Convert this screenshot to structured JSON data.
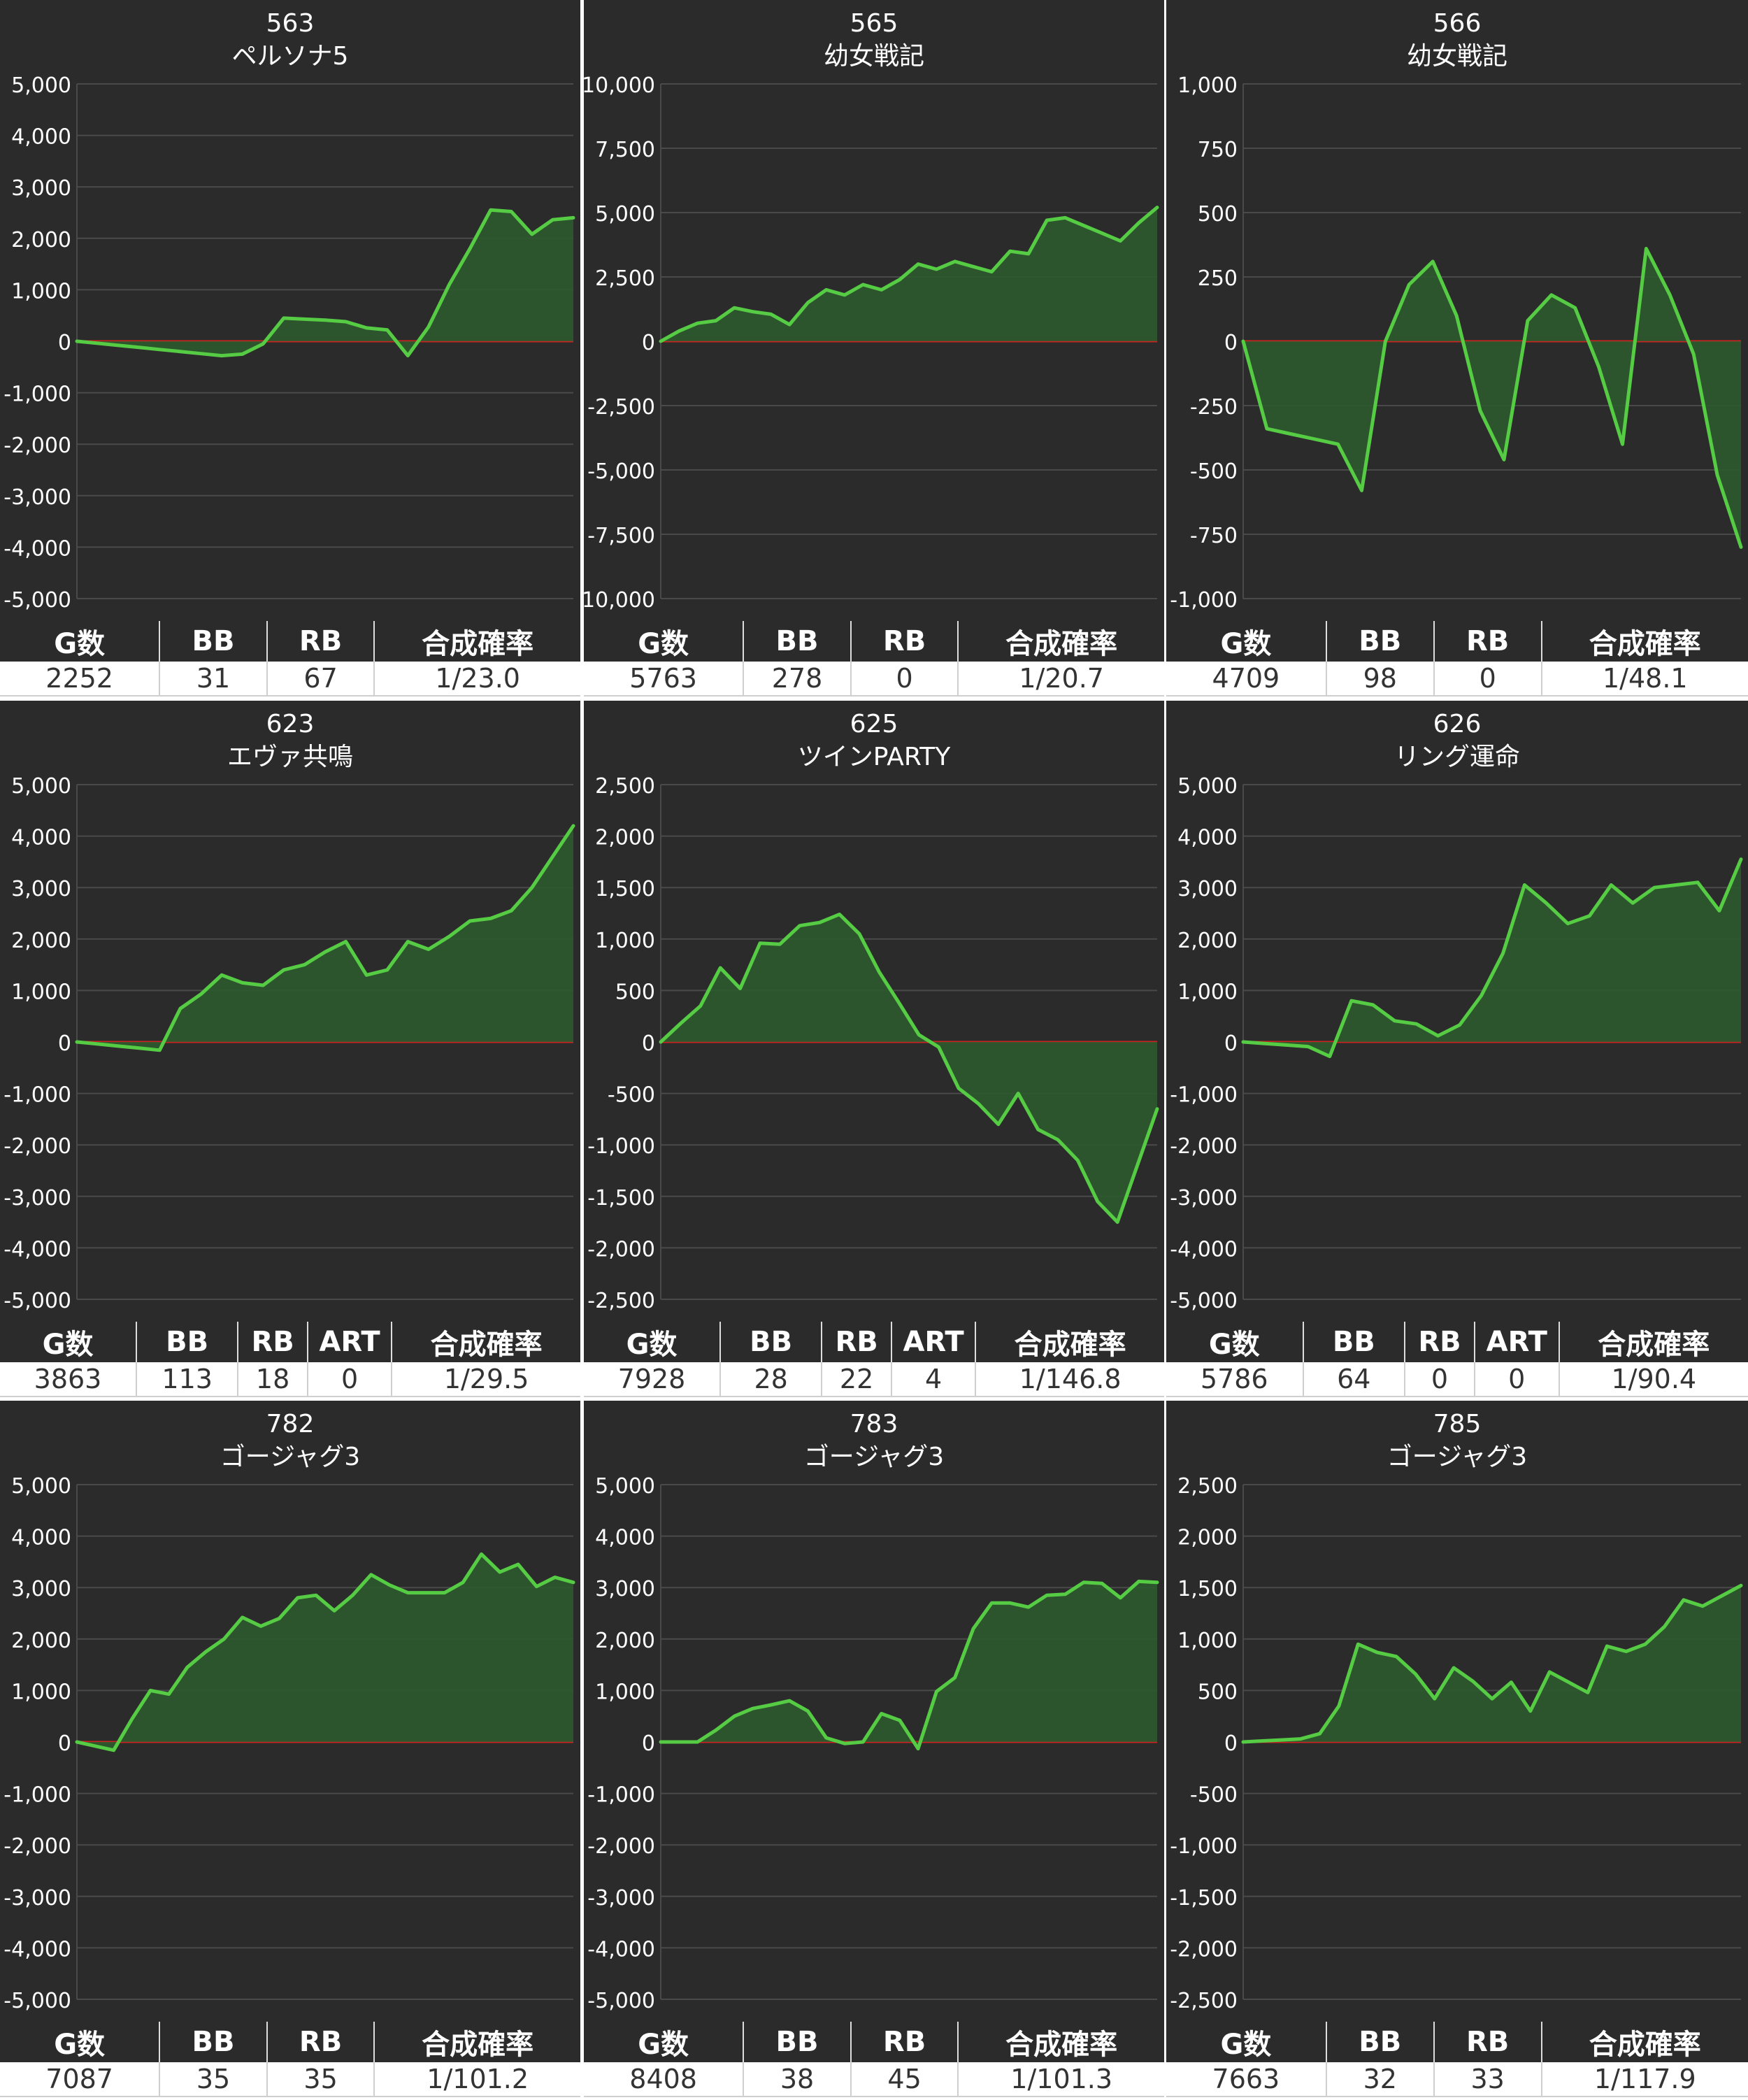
{
  "colors": {
    "background": "#2b2b2b",
    "grid": "#4a4a4a",
    "zero_line": "#cc2222",
    "line": "#55cc44",
    "fill": "#2e5a2e",
    "text": "#ffffff"
  },
  "chart_data": [
    {
      "type": "area",
      "number": "563",
      "name": "ペルソナ5",
      "ylim": [
        -5000,
        5000
      ],
      "yticks": [
        "5,000",
        "4,000",
        "3,000",
        "2,000",
        "1,000",
        "0",
        "-1,000",
        "-2,000",
        "-3,000",
        "-4,000",
        "-5,000"
      ],
      "values": [
        0,
        -40,
        -80,
        -120,
        -160,
        -200,
        -240,
        -280,
        -250,
        -50,
        450,
        430,
        410,
        380,
        260,
        220,
        -280,
        280,
        1100,
        1800,
        2550,
        2520,
        2080,
        2360,
        2400
      ],
      "stats_headers": [
        "G数",
        "BB",
        "RB",
        "合成確率"
      ],
      "stats_values": [
        "2252",
        "31",
        "67",
        "1/23.0"
      ]
    },
    {
      "type": "area",
      "number": "565",
      "name": "幼女戦記",
      "ylim": [
        -10000,
        10000
      ],
      "yticks": [
        "10,000",
        "7,500",
        "5,000",
        "2,500",
        "0",
        "-2,500",
        "-5,000",
        "-7,500",
        "-10,000"
      ],
      "values": [
        0,
        400,
        700,
        800,
        1300,
        1150,
        1050,
        650,
        1500,
        2000,
        1800,
        2200,
        2000,
        2400,
        3000,
        2800,
        3100,
        2900,
        2700,
        3500,
        3400,
        4700,
        4800,
        4500,
        4200,
        3900,
        4600,
        5200
      ],
      "stats_headers": [
        "G数",
        "BB",
        "RB",
        "合成確率"
      ],
      "stats_values": [
        "5763",
        "278",
        "0",
        "1/20.7"
      ]
    },
    {
      "type": "area",
      "number": "566",
      "name": "幼女戦記",
      "ylim": [
        -1000,
        1000
      ],
      "yticks": [
        "1,000",
        "750",
        "500",
        "250",
        "0",
        "-250",
        "-500",
        "-750",
        "-1,000"
      ],
      "values": [
        0,
        -340,
        -360,
        -380,
        -400,
        -580,
        0,
        220,
        310,
        100,
        -270,
        -460,
        80,
        180,
        130,
        -100,
        -400,
        360,
        180,
        -50,
        -520,
        -800
      ],
      "stats_headers": [
        "G数",
        "BB",
        "RB",
        "合成確率"
      ],
      "stats_values": [
        "4709",
        "98",
        "0",
        "1/48.1"
      ]
    },
    {
      "type": "area",
      "number": "623",
      "name": "エヴァ共鳴",
      "ylim": [
        -5000,
        5000
      ],
      "yticks": [
        "5,000",
        "4,000",
        "3,000",
        "2,000",
        "1,000",
        "0",
        "-1,000",
        "-2,000",
        "-3,000",
        "-4,000",
        "-5,000"
      ],
      "values": [
        0,
        -40,
        -80,
        -120,
        -160,
        650,
        930,
        1300,
        1150,
        1100,
        1400,
        1500,
        1750,
        1950,
        1300,
        1400,
        1950,
        1800,
        2050,
        2350,
        2400,
        2550,
        3000,
        3600,
        4200
      ],
      "stats_headers": [
        "G数",
        "BB",
        "RB",
        "ART",
        "合成確率"
      ],
      "stats_values": [
        "3863",
        "113",
        "18",
        "0",
        "1/29.5"
      ]
    },
    {
      "type": "area",
      "number": "625",
      "name": "ツインPARTY",
      "ylim": [
        -2500,
        2500
      ],
      "yticks": [
        "2,500",
        "2,000",
        "1,500",
        "1,000",
        "500",
        "0",
        "-500",
        "-1,000",
        "-1,500",
        "-2,000",
        "-2,500"
      ],
      "values": [
        0,
        180,
        350,
        720,
        520,
        960,
        950,
        1130,
        1160,
        1240,
        1050,
        680,
        380,
        70,
        -50,
        -450,
        -600,
        -800,
        -500,
        -850,
        -950,
        -1150,
        -1550,
        -1750,
        -1200,
        -650
      ],
      "stats_headers": [
        "G数",
        "BB",
        "RB",
        "ART",
        "合成確率"
      ],
      "stats_values": [
        "7928",
        "28",
        "22",
        "4",
        "1/146.8"
      ]
    },
    {
      "type": "area",
      "number": "626",
      "name": "リング運命",
      "ylim": [
        -5000,
        5000
      ],
      "yticks": [
        "5,000",
        "4,000",
        "3,000",
        "2,000",
        "1,000",
        "0",
        "-1,000",
        "-2,000",
        "-3,000",
        "-4,000",
        "-5,000"
      ],
      "values": [
        0,
        -30,
        -60,
        -90,
        -280,
        800,
        720,
        410,
        350,
        120,
        330,
        900,
        1720,
        3050,
        2700,
        2300,
        2450,
        3050,
        2700,
        3000,
        3050,
        3100,
        2550,
        3550
      ],
      "stats_headers": [
        "G数",
        "BB",
        "RB",
        "ART",
        "合成確率"
      ],
      "stats_values": [
        "5786",
        "64",
        "0",
        "0",
        "1/90.4"
      ]
    },
    {
      "type": "area",
      "number": "782",
      "name": "ゴージャグ3",
      "ylim": [
        -5000,
        5000
      ],
      "yticks": [
        "5,000",
        "4,000",
        "3,000",
        "2,000",
        "1,000",
        "0",
        "-1,000",
        "-2,000",
        "-3,000",
        "-4,000",
        "-5,000"
      ],
      "values": [
        0,
        -80,
        -160,
        450,
        1000,
        930,
        1450,
        1750,
        2000,
        2420,
        2250,
        2400,
        2800,
        2850,
        2550,
        2850,
        3250,
        3050,
        2900,
        2900,
        2900,
        3100,
        3650,
        3300,
        3450,
        3020,
        3200,
        3100
      ],
      "stats_headers": [
        "G数",
        "BB",
        "RB",
        "合成確率"
      ],
      "stats_values": [
        "7087",
        "35",
        "35",
        "1/101.2"
      ]
    },
    {
      "type": "area",
      "number": "783",
      "name": "ゴージャグ3",
      "ylim": [
        -5000,
        5000
      ],
      "yticks": [
        "5,000",
        "4,000",
        "3,000",
        "2,000",
        "1,000",
        "0",
        "-1,000",
        "-2,000",
        "-3,000",
        "-4,000",
        "-5,000"
      ],
      "values": [
        0,
        0,
        0,
        230,
        500,
        650,
        720,
        800,
        600,
        80,
        -30,
        0,
        550,
        420,
        -130,
        980,
        1250,
        2200,
        2700,
        2700,
        2620,
        2850,
        2870,
        3100,
        3080,
        2800,
        3120,
        3100
      ],
      "stats_headers": [
        "G数",
        "BB",
        "RB",
        "合成確率"
      ],
      "stats_values": [
        "8408",
        "38",
        "45",
        "1/101.3"
      ]
    },
    {
      "type": "area",
      "number": "785",
      "name": "ゴージャグ3",
      "ylim": [
        -2500,
        2500
      ],
      "yticks": [
        "2,500",
        "2,000",
        "1,500",
        "1,000",
        "500",
        "0",
        "-500",
        "-1,000",
        "-1,500",
        "-2,000",
        "-2,500"
      ],
      "values": [
        0,
        10,
        20,
        30,
        80,
        350,
        950,
        870,
        830,
        660,
        420,
        720,
        590,
        420,
        580,
        300,
        680,
        580,
        480,
        930,
        880,
        950,
        1120,
        1380,
        1320,
        1420,
        1520
      ],
      "stats_headers": [
        "G数",
        "BB",
        "RB",
        "合成確率"
      ],
      "stats_values": [
        "7663",
        "32",
        "33",
        "1/117.9"
      ]
    }
  ]
}
